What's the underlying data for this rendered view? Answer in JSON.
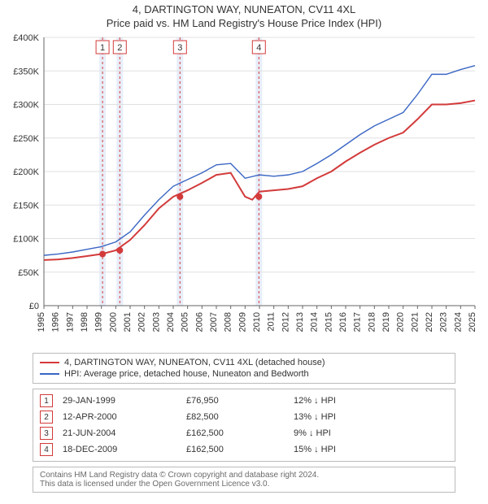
{
  "title": {
    "main": "4, DARTINGTON WAY, NUNEATON, CV11 4XL",
    "sub": "Price paid vs. HM Land Registry's House Price Index (HPI)"
  },
  "chart": {
    "type": "line",
    "background_color": "#ffffff",
    "grid_color": "#e0e0e0",
    "axis_color": "#666666",
    "yaxis": {
      "min": 0,
      "max": 400000,
      "step": 50000,
      "prefix": "£",
      "suffix": "K",
      "labels": [
        "£0",
        "£50K",
        "£100K",
        "£150K",
        "£200K",
        "£250K",
        "£300K",
        "£350K",
        "£400K"
      ]
    },
    "xaxis": {
      "min": 1995,
      "max": 2025,
      "step": 1
    },
    "marker_band_color": "#e8eef9",
    "marker_dash_color": "#d33a3a",
    "marker_badge_border": "#d33a3a",
    "series": [
      {
        "name": "property",
        "label": "4, DARTINGTON WAY, NUNEATON, CV11 4XL (detached house)",
        "color": "#d33a3a",
        "line_width": 2,
        "data": [
          [
            1995,
            68000
          ],
          [
            1996,
            69000
          ],
          [
            1997,
            71000
          ],
          [
            1998,
            74000
          ],
          [
            1999,
            76950
          ],
          [
            2000,
            82500
          ],
          [
            2001,
            98000
          ],
          [
            2002,
            120000
          ],
          [
            2003,
            145000
          ],
          [
            2004,
            162500
          ],
          [
            2005,
            172000
          ],
          [
            2006,
            183000
          ],
          [
            2007,
            195000
          ],
          [
            2008,
            198000
          ],
          [
            2009,
            162500
          ],
          [
            2009.5,
            158000
          ],
          [
            2010,
            170000
          ],
          [
            2011,
            172000
          ],
          [
            2012,
            174000
          ],
          [
            2013,
            178000
          ],
          [
            2014,
            190000
          ],
          [
            2015,
            200000
          ],
          [
            2016,
            215000
          ],
          [
            2017,
            228000
          ],
          [
            2018,
            240000
          ],
          [
            2019,
            250000
          ],
          [
            2020,
            258000
          ],
          [
            2021,
            278000
          ],
          [
            2022,
            300000
          ],
          [
            2023,
            300000
          ],
          [
            2024,
            302000
          ],
          [
            2025,
            306000
          ]
        ]
      },
      {
        "name": "hpi",
        "label": "HPI: Average price, detached house, Nuneaton and Bedworth",
        "color": "#3a66c4",
        "line_width": 1.4,
        "data": [
          [
            1995,
            75000
          ],
          [
            1996,
            77000
          ],
          [
            1997,
            80000
          ],
          [
            1998,
            84000
          ],
          [
            1999,
            88000
          ],
          [
            2000,
            95000
          ],
          [
            2001,
            110000
          ],
          [
            2002,
            135000
          ],
          [
            2003,
            158000
          ],
          [
            2004,
            178000
          ],
          [
            2005,
            188000
          ],
          [
            2006,
            198000
          ],
          [
            2007,
            210000
          ],
          [
            2008,
            212000
          ],
          [
            2009,
            190000
          ],
          [
            2010,
            195000
          ],
          [
            2011,
            193000
          ],
          [
            2012,
            195000
          ],
          [
            2013,
            200000
          ],
          [
            2014,
            212000
          ],
          [
            2015,
            225000
          ],
          [
            2016,
            240000
          ],
          [
            2017,
            255000
          ],
          [
            2018,
            268000
          ],
          [
            2019,
            278000
          ],
          [
            2020,
            288000
          ],
          [
            2021,
            315000
          ],
          [
            2022,
            345000
          ],
          [
            2023,
            345000
          ],
          [
            2024,
            352000
          ],
          [
            2025,
            358000
          ]
        ]
      }
    ],
    "markers": [
      {
        "n": "1",
        "x": 1999.08,
        "y": 76950
      },
      {
        "n": "2",
        "x": 2000.28,
        "y": 82500
      },
      {
        "n": "3",
        "x": 2004.47,
        "y": 162500
      },
      {
        "n": "4",
        "x": 2009.96,
        "y": 162500
      }
    ]
  },
  "legend": {
    "items": [
      {
        "color": "#d33a3a",
        "text": "4, DARTINGTON WAY, NUNEATON, CV11 4XL (detached house)"
      },
      {
        "color": "#3a66c4",
        "text": "HPI: Average price, detached house, Nuneaton and Bedworth"
      }
    ]
  },
  "sales": [
    {
      "n": "1",
      "date": "29-JAN-1999",
      "price": "£76,950",
      "gap": "12% ↓ HPI"
    },
    {
      "n": "2",
      "date": "12-APR-2000",
      "price": "£82,500",
      "gap": "13% ↓ HPI"
    },
    {
      "n": "3",
      "date": "21-JUN-2004",
      "price": "£162,500",
      "gap": "9% ↓ HPI"
    },
    {
      "n": "4",
      "date": "18-DEC-2009",
      "price": "£162,500",
      "gap": "15% ↓ HPI"
    }
  ],
  "attribution": {
    "line1": "Contains HM Land Registry data © Crown copyright and database right 2024.",
    "line2": "This data is licensed under the Open Government Licence v3.0."
  }
}
